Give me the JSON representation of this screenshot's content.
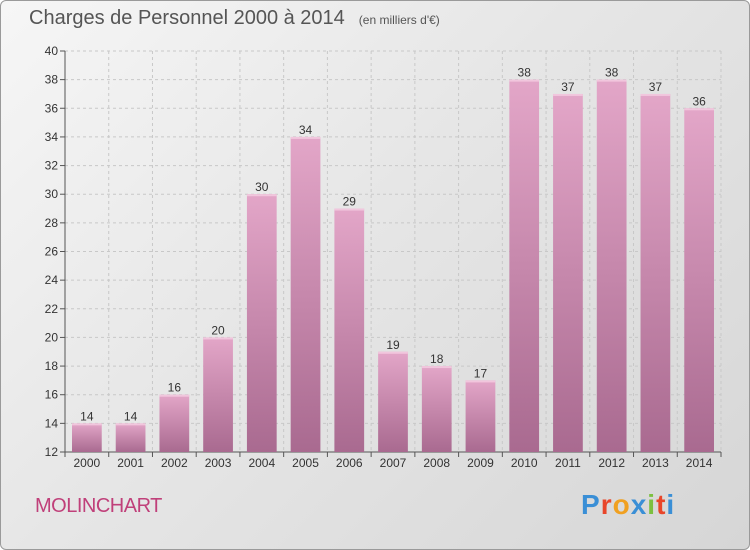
{
  "header": {
    "title": "Charges de Personnel 2000 à 2014",
    "unit": "(en milliers d'€)"
  },
  "footer": {
    "commune": "MOLINCHART",
    "logo_letters": [
      "P",
      "r",
      "o",
      "x",
      "i",
      "t",
      "i"
    ],
    "logo_colors": [
      "#3a8fd6",
      "#e8462a",
      "#f0a020",
      "#3a8fd6",
      "#7cc040",
      "#e8462a",
      "#3a8fd6"
    ]
  },
  "chart_data": {
    "type": "bar",
    "title": "Charges de Personnel 2000 à 2014",
    "subtitle": "(en milliers d'€)",
    "categories": [
      "2000",
      "2001",
      "2002",
      "2003",
      "2004",
      "2005",
      "2006",
      "2007",
      "2008",
      "2009",
      "2010",
      "2011",
      "2012",
      "2013",
      "2014"
    ],
    "values": [
      14,
      14,
      16,
      20,
      30,
      34,
      29,
      19,
      18,
      17,
      38,
      37,
      38,
      37,
      36
    ],
    "ylim": [
      12,
      40
    ],
    "yticks": [
      12,
      14,
      16,
      18,
      20,
      22,
      24,
      26,
      28,
      30,
      32,
      34,
      36,
      38,
      40
    ],
    "grid": true,
    "bar_color": "#d58fb6",
    "bar_color_dark": "#a96a90"
  }
}
